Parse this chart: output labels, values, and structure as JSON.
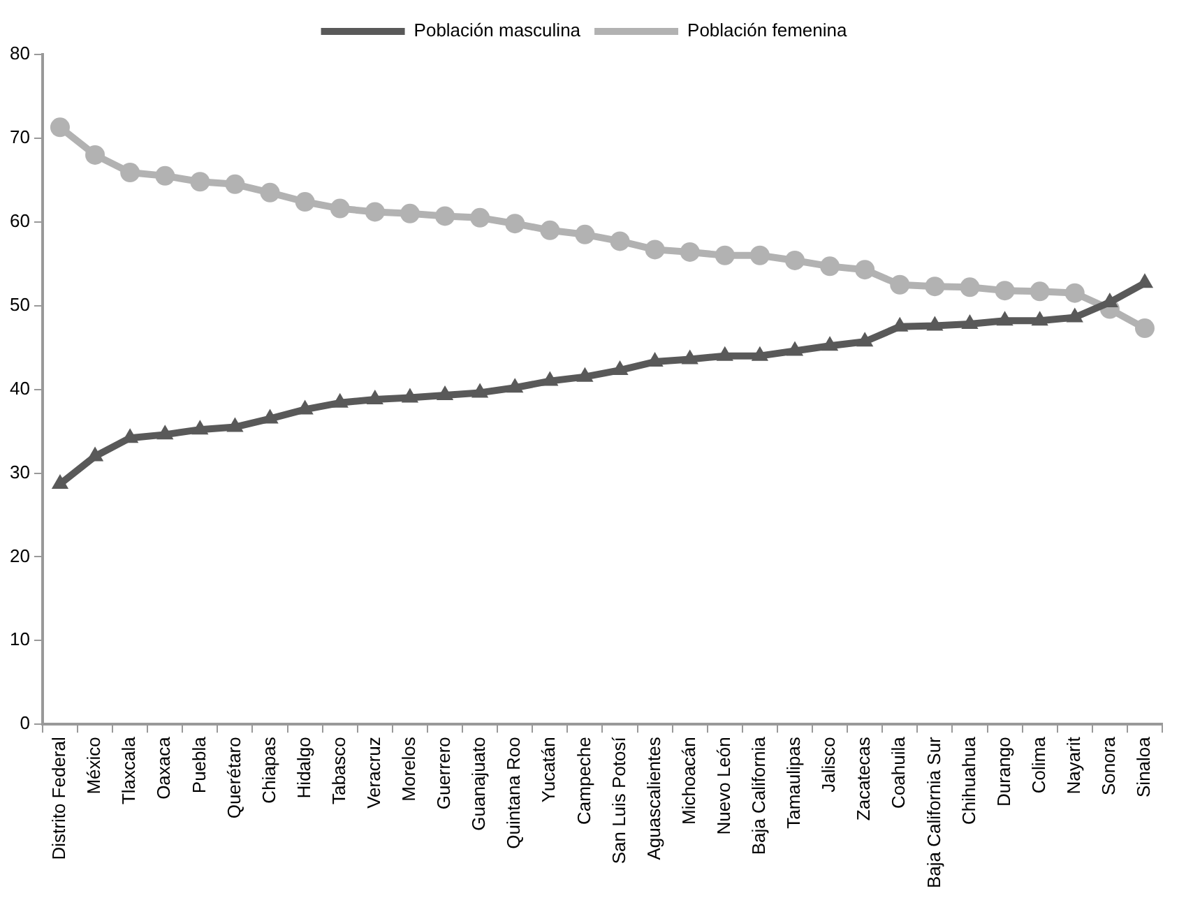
{
  "chart_data": {
    "type": "line",
    "categories": [
      "Distrito Federal",
      "México",
      "Tlaxcala",
      "Oaxaca",
      "Puebla",
      "Querétaro",
      "Chiapas",
      "Hidalgo",
      "Tabasco",
      "Veracruz",
      "Morelos",
      "Guerrero",
      "Guanajuato",
      "Quintana Roo",
      "Yucatán",
      "Campeche",
      "San Luis Potosí",
      "Aguascalientes",
      "Michoacán",
      "Nuevo León",
      "Baja California",
      "Tamaulipas",
      "Jalisco",
      "Zacatecas",
      "Coahuila",
      "Baja California Sur",
      "Chihuahua",
      "Durango",
      "Colima",
      "Nayarit",
      "Sonora",
      "Sinaloa"
    ],
    "series": [
      {
        "name": "Población masculina",
        "color": "#595959",
        "marker": "triangle",
        "values": [
          28.7,
          32,
          34.2,
          34.6,
          35.2,
          35.5,
          36.5,
          37.6,
          38.4,
          38.8,
          39,
          39.3,
          39.6,
          40.2,
          41,
          41.5,
          42.3,
          43.3,
          43.6,
          44,
          44,
          44.6,
          45.2,
          45.7,
          47.5,
          47.6,
          47.8,
          48.2,
          48.2,
          48.6,
          50.4,
          52.7
        ]
      },
      {
        "name": "Población femenina",
        "color": "#b2b2b2",
        "marker": "circle",
        "values": [
          71.3,
          68,
          65.9,
          65.5,
          64.8,
          64.5,
          63.5,
          62.4,
          61.6,
          61.2,
          61,
          60.7,
          60.5,
          59.8,
          59,
          58.5,
          57.7,
          56.7,
          56.4,
          56,
          56,
          55.4,
          54.7,
          54.3,
          52.5,
          52.3,
          52.2,
          51.8,
          51.7,
          51.5,
          49.6,
          47.3
        ]
      }
    ],
    "ylim": [
      0,
      80
    ],
    "yticks": [
      0,
      10,
      20,
      30,
      40,
      50,
      60,
      70,
      80
    ],
    "grid": false,
    "legend": "top",
    "line_style": "solid"
  }
}
